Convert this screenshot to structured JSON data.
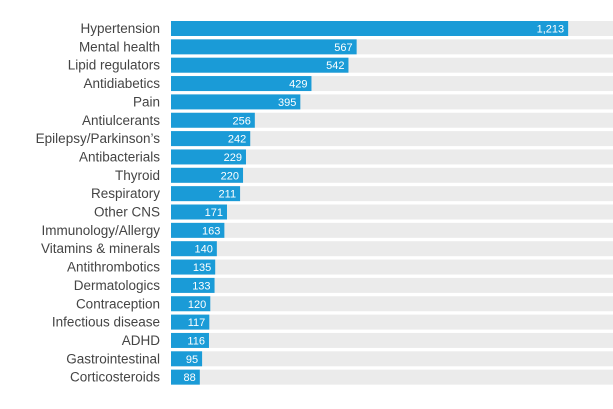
{
  "chart_data": {
    "type": "bar",
    "orientation": "horizontal",
    "categories": [
      "Hypertension",
      "Mental health",
      "Lipid regulators",
      "Antidiabetics",
      "Pain",
      "Antiulcerants",
      "Epilepsy/Parkinson’s",
      "Antibacterials",
      "Thyroid",
      "Respiratory",
      "Other CNS",
      "Immunology/Allergy",
      "Vitamins & minerals",
      "Antithrombotics",
      "Dermatologics",
      "Contraception",
      "Infectious disease",
      "ADHD",
      "Gastrointestinal",
      "Corticosteroids"
    ],
    "values": [
      1213,
      567,
      542,
      429,
      395,
      256,
      242,
      229,
      220,
      211,
      171,
      163,
      140,
      135,
      133,
      120,
      117,
      116,
      95,
      88
    ],
    "value_labels": [
      "1,213",
      "567",
      "542",
      "429",
      "395",
      "256",
      "242",
      "229",
      "220",
      "211",
      "171",
      "163",
      "140",
      "135",
      "133",
      "120",
      "117",
      "116",
      "95",
      "88"
    ],
    "title": "",
    "xlabel": "",
    "ylabel": "",
    "xlim": [
      0,
      1350
    ],
    "grid": false,
    "legend": "none",
    "colors": {
      "bar": "#1a9bd7",
      "track": "#ebebeb",
      "label": "#444444",
      "value_label": "#ffffff"
    }
  }
}
